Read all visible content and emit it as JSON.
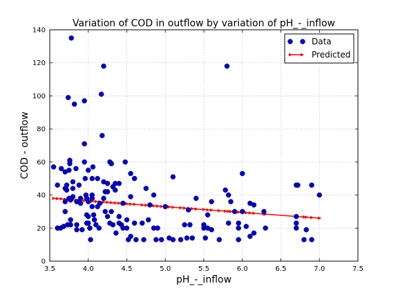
{
  "chart_data": {
    "type": "scatter",
    "title": "Variation of COD in outflow by variation of pH_-_inflow",
    "xlabel": "pH_-_inflow",
    "ylabel": "COD - outflow",
    "xlim": [
      3.5,
      7.5
    ],
    "ylim": [
      0,
      140
    ],
    "xticks": [
      "3.5",
      "4.0",
      "4.5",
      "5.0",
      "5.5",
      "6.0",
      "6.5",
      "7.0",
      "7.5"
    ],
    "yticks": [
      "0",
      "20",
      "40",
      "60",
      "80",
      "100",
      "120",
      "140"
    ],
    "grid": true,
    "legend": {
      "position": "top-right"
    },
    "colors": {
      "data": "#0000cc",
      "predicted": "#ff0000"
    },
    "series": [
      {
        "name": "Data",
        "style": "markers",
        "points": [
          [
            3.55,
            57
          ],
          [
            3.6,
            46
          ],
          [
            3.6,
            20
          ],
          [
            3.64,
            20
          ],
          [
            3.65,
            56
          ],
          [
            3.68,
            21
          ],
          [
            3.7,
            54
          ],
          [
            3.7,
            44
          ],
          [
            3.7,
            30
          ],
          [
            3.7,
            36
          ],
          [
            3.72,
            46
          ],
          [
            3.72,
            43
          ],
          [
            3.73,
            22
          ],
          [
            3.74,
            99
          ],
          [
            3.75,
            55
          ],
          [
            3.75,
            38
          ],
          [
            3.76,
            59
          ],
          [
            3.76,
            61
          ],
          [
            3.77,
            37
          ],
          [
            3.77,
            25
          ],
          [
            3.77,
            22
          ],
          [
            3.78,
            135
          ],
          [
            3.8,
            48
          ],
          [
            3.8,
            44
          ],
          [
            3.8,
            39
          ],
          [
            3.82,
            95
          ],
          [
            3.84,
            56
          ],
          [
            3.85,
            36
          ],
          [
            3.85,
            22
          ],
          [
            3.85,
            19
          ],
          [
            3.88,
            46
          ],
          [
            3.9,
            38
          ],
          [
            3.9,
            35
          ],
          [
            3.92,
            19
          ],
          [
            3.95,
            97
          ],
          [
            3.95,
            71
          ],
          [
            3.95,
            60
          ],
          [
            3.96,
            50
          ],
          [
            3.97,
            40
          ],
          [
            3.98,
            38
          ],
          [
            3.98,
            28
          ],
          [
            3.98,
            23
          ],
          [
            4.0,
            55
          ],
          [
            4.0,
            36
          ],
          [
            4.0,
            27
          ],
          [
            4.0,
            23
          ],
          [
            4.02,
            20
          ],
          [
            4.02,
            20
          ],
          [
            4.03,
            13
          ],
          [
            4.05,
            50
          ],
          [
            4.05,
            40
          ],
          [
            4.05,
            38
          ],
          [
            4.05,
            33
          ],
          [
            4.06,
            57
          ],
          [
            4.07,
            28
          ],
          [
            4.08,
            25
          ],
          [
            4.1,
            22
          ],
          [
            4.12,
            50
          ],
          [
            4.12,
            33
          ],
          [
            4.14,
            20
          ],
          [
            4.15,
            35
          ],
          [
            4.17,
            101
          ],
          [
            4.18,
            76
          ],
          [
            4.2,
            118
          ],
          [
            4.2,
            48
          ],
          [
            4.2,
            38
          ],
          [
            4.22,
            42
          ],
          [
            4.22,
            30
          ],
          [
            4.25,
            47
          ],
          [
            4.25,
            42
          ],
          [
            4.25,
            27
          ],
          [
            4.28,
            60
          ],
          [
            4.28,
            23
          ],
          [
            4.3,
            59
          ],
          [
            4.3,
            30
          ],
          [
            4.32,
            45
          ],
          [
            4.32,
            22
          ],
          [
            4.35,
            47
          ],
          [
            4.35,
            43
          ],
          [
            4.36,
            17
          ],
          [
            4.4,
            47
          ],
          [
            4.4,
            27
          ],
          [
            4.4,
            23
          ],
          [
            4.43,
            22
          ],
          [
            4.45,
            35
          ],
          [
            4.45,
            20
          ],
          [
            4.48,
            60
          ],
          [
            4.5,
            25
          ],
          [
            4.5,
            20
          ],
          [
            4.52,
            13
          ],
          [
            4.55,
            53
          ],
          [
            4.55,
            39
          ],
          [
            4.55,
            15
          ],
          [
            4.6,
            50
          ],
          [
            4.6,
            23
          ],
          [
            4.62,
            13
          ],
          [
            4.7,
            23
          ],
          [
            4.72,
            13
          ],
          [
            4.75,
            44
          ],
          [
            4.78,
            25
          ],
          [
            4.8,
            34
          ],
          [
            4.85,
            40
          ],
          [
            4.85,
            20
          ],
          [
            4.88,
            13
          ],
          [
            4.9,
            20
          ],
          [
            4.95,
            13
          ],
          [
            5.0,
            33
          ],
          [
            5.05,
            14
          ],
          [
            5.1,
            51
          ],
          [
            5.1,
            13
          ],
          [
            5.2,
            13
          ],
          [
            5.25,
            22
          ],
          [
            5.28,
            14
          ],
          [
            5.3,
            31
          ],
          [
            5.32,
            22
          ],
          [
            5.35,
            14
          ],
          [
            5.4,
            38
          ],
          [
            5.5,
            22
          ],
          [
            5.5,
            20
          ],
          [
            5.52,
            14
          ],
          [
            5.55,
            20
          ],
          [
            5.55,
            28
          ],
          [
            5.6,
            36
          ],
          [
            5.6,
            19
          ],
          [
            5.7,
            13
          ],
          [
            5.78,
            43
          ],
          [
            5.8,
            118
          ],
          [
            5.82,
            23
          ],
          [
            5.82,
            40
          ],
          [
            5.85,
            36
          ],
          [
            5.9,
            30
          ],
          [
            5.95,
            20
          ],
          [
            5.95,
            23
          ],
          [
            5.95,
            13
          ],
          [
            6.0,
            53
          ],
          [
            6.0,
            30
          ],
          [
            6.05,
            21
          ],
          [
            6.1,
            35
          ],
          [
            6.1,
            15
          ],
          [
            6.15,
            34
          ],
          [
            6.15,
            17
          ],
          [
            6.28,
            30
          ],
          [
            6.3,
            20
          ],
          [
            6.7,
            46
          ],
          [
            6.7,
            27
          ],
          [
            6.7,
            23
          ],
          [
            6.7,
            20
          ],
          [
            6.72,
            46
          ],
          [
            6.8,
            13
          ],
          [
            6.83,
            19
          ],
          [
            6.9,
            46
          ],
          [
            6.9,
            13
          ],
          [
            7.0,
            40
          ]
        ]
      },
      {
        "name": "Predicted",
        "style": "line-markers",
        "line": {
          "from": [
            3.55,
            38
          ],
          "to": [
            7.0,
            26
          ]
        },
        "x": [
          3.55,
          3.6,
          3.65,
          3.7,
          3.75,
          3.8,
          3.85,
          3.9,
          3.95,
          4.0,
          4.05,
          4.1,
          4.15,
          4.2,
          4.25,
          4.3,
          4.35,
          4.4,
          4.45,
          4.5,
          4.55,
          4.6,
          4.7,
          4.75,
          4.8,
          4.85,
          4.9,
          4.95,
          5.0,
          5.05,
          5.1,
          5.2,
          5.25,
          5.3,
          5.35,
          5.4,
          5.5,
          5.55,
          5.6,
          5.7,
          5.78,
          5.82,
          5.85,
          5.9,
          5.95,
          6.0,
          6.05,
          6.1,
          6.15,
          6.28,
          6.3,
          6.7,
          6.72,
          6.8,
          6.83,
          6.9,
          7.0
        ]
      }
    ]
  }
}
